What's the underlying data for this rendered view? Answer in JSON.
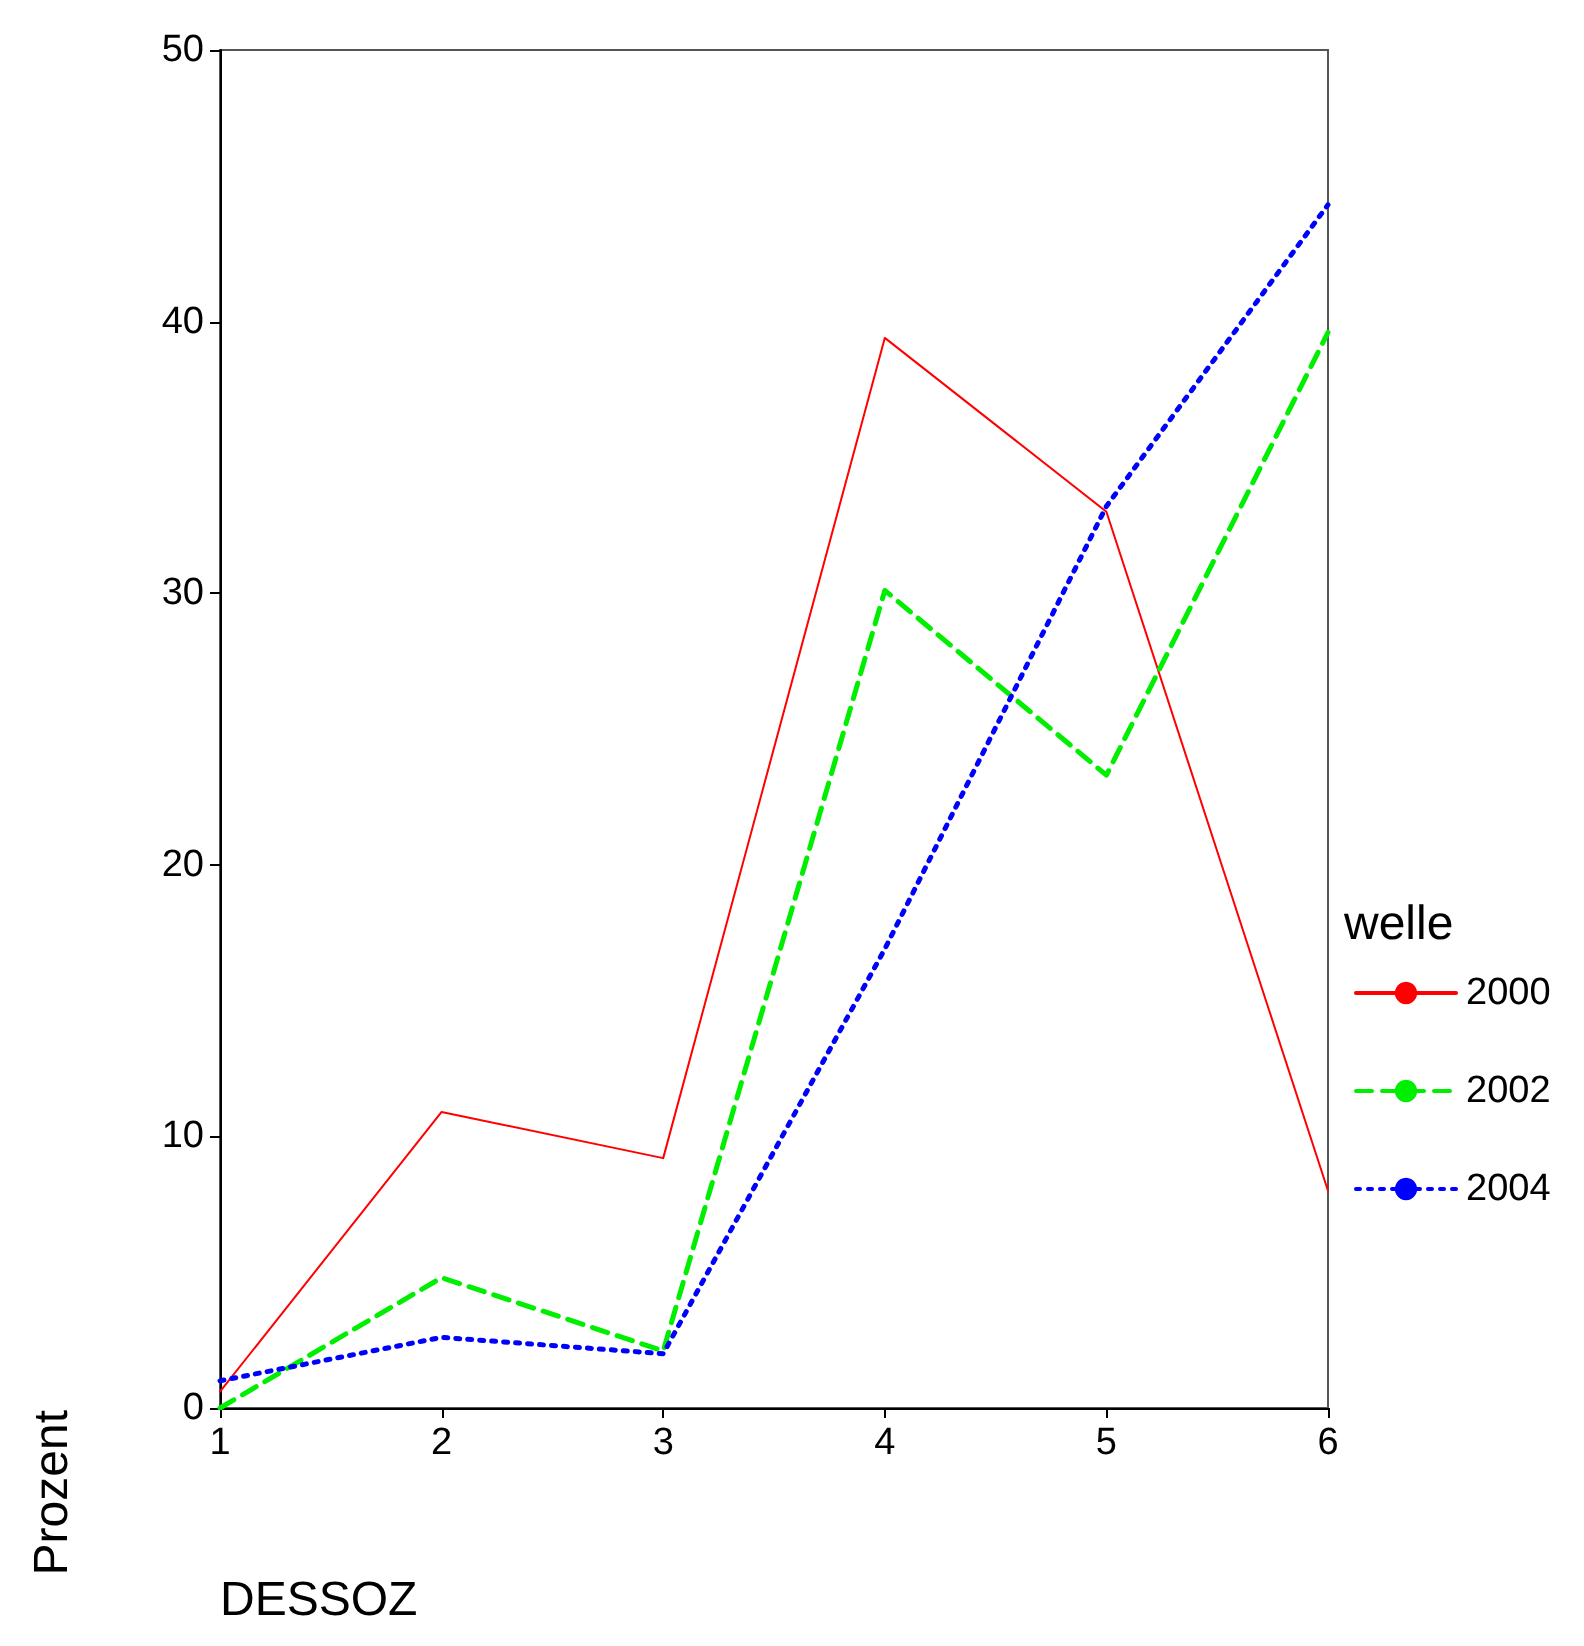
{
  "chart_data": {
    "type": "line",
    "xlabel": "DESSOZ",
    "ylabel": "Prozent",
    "legend_title": "welle",
    "legend": "right",
    "grid": false,
    "marker": "none",
    "x": [
      1,
      2,
      3,
      4,
      5,
      6
    ],
    "xlim": [
      1,
      6
    ],
    "xticks": [
      1,
      2,
      3,
      4,
      5,
      6
    ],
    "ylim": [
      0,
      50
    ],
    "yticks": [
      0,
      10,
      20,
      30,
      40,
      50
    ],
    "series": [
      {
        "name": "2000",
        "color": "#ff0000",
        "line_style": "solid",
        "values": [
          0.6,
          10.9,
          9.2,
          39.4,
          33.0,
          8.0
        ]
      },
      {
        "name": "2002",
        "color": "#00ee00",
        "line_style": "dashed",
        "values": [
          0,
          4.8,
          2.1,
          30.1,
          23.3,
          39.6
        ]
      },
      {
        "name": "2004",
        "color": "#0000ff",
        "line_style": "dotted",
        "values": [
          1.0,
          2.6,
          2.0,
          16.9,
          33.2,
          44.3
        ]
      }
    ]
  }
}
